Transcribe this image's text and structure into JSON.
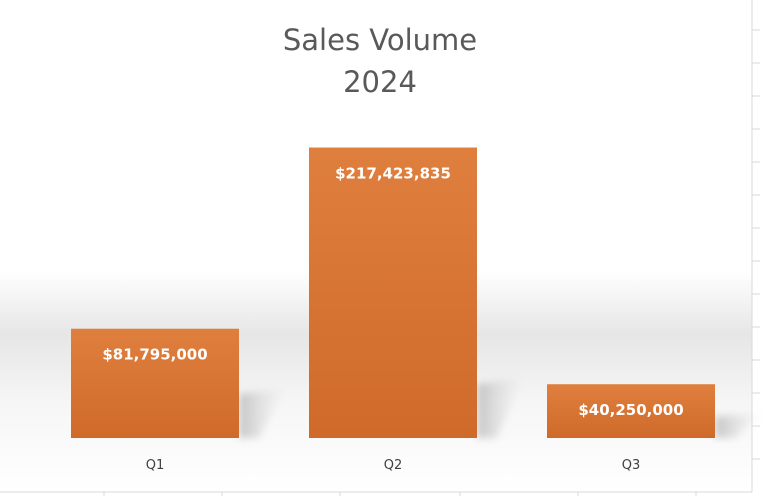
{
  "chart_data": {
    "type": "bar",
    "title_lines": [
      "Sales Volume",
      "2024"
    ],
    "categories": [
      "Q1",
      "Q2",
      "Q3"
    ],
    "values": [
      81795000,
      217423835,
      40250000
    ],
    "data_labels": [
      "$81,795,000",
      "$217,423,835",
      "$40,250,000"
    ],
    "ylim": [
      0,
      250000000
    ],
    "grid": false,
    "legend": "none",
    "bar_color": "#DF7F3E",
    "bar_color_dark": "#CF6A2A",
    "label_color": "#FFFFFF"
  }
}
